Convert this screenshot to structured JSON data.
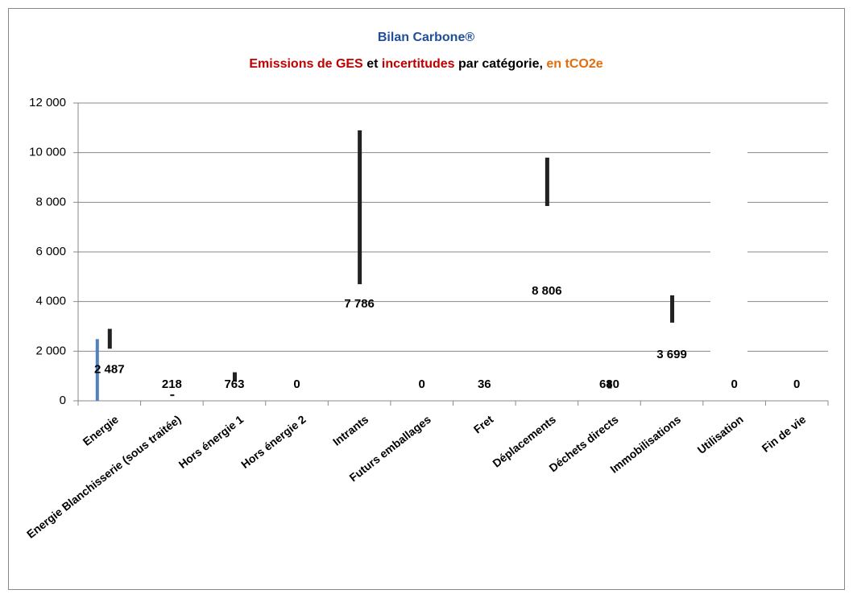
{
  "chart_data": {
    "type": "bar",
    "title": "Bilan Carbone®",
    "title_color": "#1f4e9a",
    "subtitle": [
      {
        "text": "Emissions de GES",
        "color": "#c00000"
      },
      {
        "text": "et",
        "color": "#000000"
      },
      {
        "text": "incertitudes",
        "color": "#c00000"
      },
      {
        "text": "par catégorie,",
        "color": "#000000"
      },
      {
        "text": "en tCO2e",
        "color": "#e46c0a"
      }
    ],
    "categories": [
      "Energie",
      "Energie Blanchisserie (sous traitée)",
      "Hors énergie 1",
      "Hors énergie 2",
      "Intrants",
      "Futurs emballages",
      "Fret",
      "Déplacements",
      "Déchets directs",
      "Immobilisations",
      "Utilisation",
      "Fin de vie"
    ],
    "values": [
      2487,
      218,
      763,
      0,
      7786,
      0,
      36,
      8806,
      680,
      3699,
      0,
      0
    ],
    "value_labels": [
      "2 487",
      "218",
      "763",
      "0",
      "7 786",
      "0",
      "36",
      "8 806",
      "680",
      "3 699",
      "0",
      "0"
    ],
    "bar_colors": [
      "#4f81bd",
      "none",
      "none",
      "none",
      "none",
      "none",
      "none",
      "none",
      "none",
      "none",
      "none",
      "none"
    ],
    "uncertainty": [
      [
        2100,
        2900
      ],
      [
        190,
        260
      ],
      [
        780,
        1150
      ],
      null,
      [
        4700,
        10900
      ],
      null,
      null,
      [
        7850,
        9800
      ],
      [
        500,
        800
      ],
      [
        3150,
        4250
      ],
      null,
      null
    ],
    "error_color": "#222222",
    "ylim": [
      0,
      12000
    ],
    "yticks": [
      0,
      {
        "value": 2000,
        "label": "2 000"
      },
      {
        "value": 4000,
        "label": "4 000"
      },
      {
        "value": 6000,
        "label": "6 000"
      },
      {
        "value": 8000,
        "label": "8 000"
      },
      {
        "value": 10000,
        "label": "10 000"
      },
      {
        "value": 12000,
        "label": "12 000"
      }
    ],
    "grid": true
  }
}
